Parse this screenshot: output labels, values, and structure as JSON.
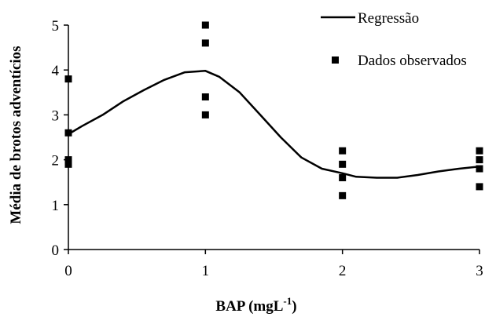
{
  "chart_data": {
    "type": "scatter",
    "title": "",
    "xlabel": "BAP (mgL",
    "xlabel_sup": "-1",
    "xlabel_end": ")",
    "ylabel": "Média de brotos adventícios",
    "xlim": [
      0,
      3
    ],
    "ylim": [
      0,
      5
    ],
    "x_ticks": [
      "0",
      "1",
      "2",
      "3"
    ],
    "y_ticks": [
      "0",
      "1",
      "2",
      "3",
      "4",
      "5"
    ],
    "grid": false,
    "legend_position": "top-right",
    "series": [
      {
        "name": "Regressão",
        "kind": "line",
        "color": "#000000",
        "x": [
          0,
          0.1,
          0.25,
          0.4,
          0.55,
          0.7,
          0.85,
          1.0,
          1.1,
          1.25,
          1.4,
          1.55,
          1.7,
          1.85,
          2.0,
          2.1,
          2.25,
          2.4,
          2.55,
          2.7,
          2.85,
          3.0
        ],
        "y": [
          2.57,
          2.75,
          3.0,
          3.3,
          3.55,
          3.78,
          3.95,
          3.98,
          3.85,
          3.5,
          3.0,
          2.5,
          2.05,
          1.8,
          1.7,
          1.62,
          1.6,
          1.6,
          1.66,
          1.74,
          1.8,
          1.85
        ]
      },
      {
        "name": "Dados observados",
        "kind": "scatter",
        "color": "#000000",
        "x": [
          0,
          0,
          0,
          0,
          1,
          1,
          1,
          1,
          2,
          2,
          2,
          2,
          3,
          3,
          3,
          3
        ],
        "y": [
          3.8,
          2.6,
          2.0,
          1.9,
          5.0,
          4.6,
          3.4,
          3.0,
          2.2,
          1.9,
          1.6,
          1.2,
          2.2,
          2.0,
          1.8,
          1.4
        ]
      }
    ]
  }
}
